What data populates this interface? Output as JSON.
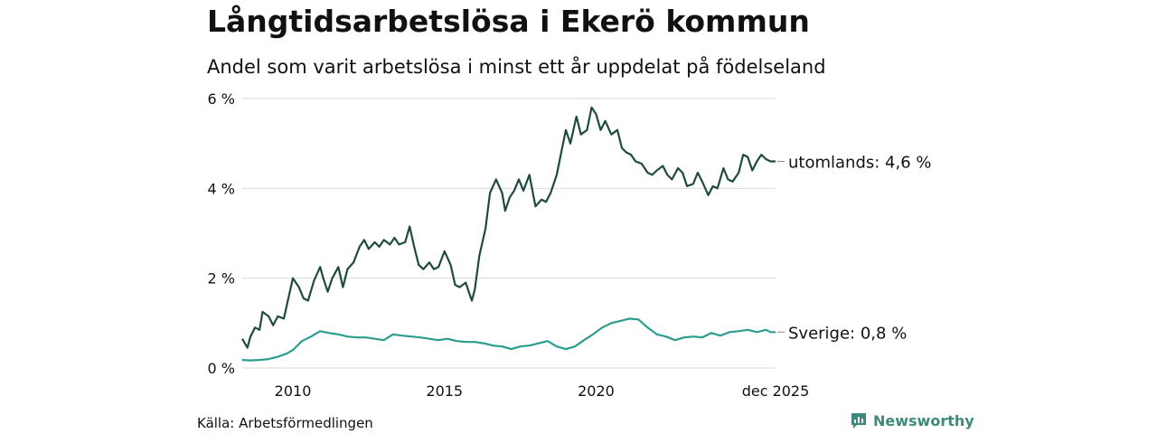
{
  "title": "Långtidsarbetslösa i Ekerö kommun",
  "subtitle": "Andel som varit arbetslösa i minst ett år uppdelat på födelseland",
  "source": "Källa: Arbetsförmedlingen",
  "brand": "Newsworthy",
  "chart_data": {
    "type": "line",
    "title": "Långtidsarbetslösa i Ekerö kommun",
    "ylim": [
      0,
      6
    ],
    "y_ticks": [
      {
        "value": 0,
        "label": "0 %"
      },
      {
        "value": 2,
        "label": "2 %"
      },
      {
        "value": 4,
        "label": "4 %"
      },
      {
        "value": 6,
        "label": "6 %"
      }
    ],
    "x_ticks": [
      {
        "value": 2010.0,
        "label": "2010"
      },
      {
        "value": 2015.0,
        "label": "2015"
      },
      {
        "value": 2020.0,
        "label": "2020"
      },
      {
        "value": 2025.917,
        "label": "dec 2025"
      }
    ],
    "xlim": [
      2008.33,
      2025.917
    ],
    "grid": true,
    "series": [
      {
        "name": "utomlands",
        "label": "utomlands: 4,6 %",
        "color": "#1f4a42",
        "x": [
          2008.33,
          2008.5,
          2008.6,
          2008.75,
          2008.9,
          2009.0,
          2009.2,
          2009.35,
          2009.5,
          2009.7,
          2009.85,
          2010.0,
          2010.2,
          2010.35,
          2010.5,
          2010.7,
          2010.9,
          2011.0,
          2011.15,
          2011.3,
          2011.5,
          2011.65,
          2011.8,
          2012.0,
          2012.2,
          2012.35,
          2012.5,
          2012.7,
          2012.85,
          2013.0,
          2013.2,
          2013.35,
          2013.5,
          2013.7,
          2013.85,
          2014.0,
          2014.15,
          2014.3,
          2014.5,
          2014.65,
          2014.8,
          2015.0,
          2015.2,
          2015.35,
          2015.5,
          2015.7,
          2015.9,
          2016.0,
          2016.15,
          2016.35,
          2016.5,
          2016.7,
          2016.9,
          2017.0,
          2017.15,
          2017.3,
          2017.45,
          2017.6,
          2017.8,
          2018.0,
          2018.2,
          2018.35,
          2018.5,
          2018.7,
          2018.85,
          2019.0,
          2019.15,
          2019.35,
          2019.5,
          2019.7,
          2019.85,
          2020.0,
          2020.15,
          2020.3,
          2020.5,
          2020.7,
          2020.85,
          2021.0,
          2021.15,
          2021.3,
          2021.5,
          2021.7,
          2021.85,
          2022.0,
          2022.2,
          2022.35,
          2022.5,
          2022.7,
          2022.85,
          2023.0,
          2023.2,
          2023.35,
          2023.5,
          2023.7,
          2023.85,
          2024.0,
          2024.2,
          2024.35,
          2024.5,
          2024.7,
          2024.85,
          2025.0,
          2025.15,
          2025.3,
          2025.45,
          2025.6,
          2025.75,
          2025.917
        ],
        "values": [
          0.65,
          0.45,
          0.7,
          0.9,
          0.85,
          1.25,
          1.15,
          0.95,
          1.15,
          1.1,
          1.55,
          2.0,
          1.8,
          1.55,
          1.5,
          1.95,
          2.25,
          2.0,
          1.7,
          2.0,
          2.25,
          1.8,
          2.2,
          2.35,
          2.7,
          2.85,
          2.65,
          2.8,
          2.7,
          2.85,
          2.75,
          2.9,
          2.75,
          2.8,
          3.15,
          2.7,
          2.3,
          2.2,
          2.35,
          2.2,
          2.25,
          2.6,
          2.3,
          1.85,
          1.8,
          1.9,
          1.5,
          1.75,
          2.5,
          3.1,
          3.9,
          4.2,
          3.9,
          3.5,
          3.8,
          3.95,
          4.2,
          3.95,
          4.3,
          3.6,
          3.75,
          3.7,
          3.9,
          4.3,
          4.8,
          5.3,
          5.0,
          5.6,
          5.2,
          5.3,
          5.8,
          5.65,
          5.3,
          5.5,
          5.2,
          5.3,
          4.9,
          4.8,
          4.75,
          4.6,
          4.55,
          4.35,
          4.3,
          4.4,
          4.5,
          4.3,
          4.2,
          4.45,
          4.35,
          4.05,
          4.1,
          4.35,
          4.15,
          3.85,
          4.05,
          4.0,
          4.45,
          4.2,
          4.15,
          4.35,
          4.75,
          4.7,
          4.4,
          4.6,
          4.75,
          4.65,
          4.6,
          4.6
        ]
      },
      {
        "name": "Sverige",
        "label": "Sverige: 0,8 %",
        "color": "#2a9d8f",
        "x": [
          2008.33,
          2008.6,
          2008.9,
          2009.2,
          2009.5,
          2009.8,
          2010.0,
          2010.3,
          2010.6,
          2010.9,
          2011.2,
          2011.5,
          2011.8,
          2012.1,
          2012.4,
          2012.7,
          2013.0,
          2013.3,
          2013.6,
          2013.9,
          2014.2,
          2014.5,
          2014.8,
          2015.1,
          2015.4,
          2015.7,
          2016.0,
          2016.3,
          2016.6,
          2016.9,
          2017.2,
          2017.5,
          2017.8,
          2018.1,
          2018.4,
          2018.7,
          2019.0,
          2019.3,
          2019.6,
          2019.9,
          2020.2,
          2020.5,
          2020.8,
          2021.1,
          2021.4,
          2021.7,
          2022.0,
          2022.3,
          2022.6,
          2022.9,
          2023.2,
          2023.5,
          2023.8,
          2024.1,
          2024.4,
          2024.7,
          2025.0,
          2025.3,
          2025.6,
          2025.75,
          2025.917
        ],
        "values": [
          0.18,
          0.17,
          0.18,
          0.2,
          0.25,
          0.32,
          0.4,
          0.6,
          0.7,
          0.82,
          0.78,
          0.75,
          0.7,
          0.68,
          0.68,
          0.65,
          0.62,
          0.75,
          0.72,
          0.7,
          0.68,
          0.65,
          0.62,
          0.65,
          0.6,
          0.58,
          0.58,
          0.55,
          0.5,
          0.48,
          0.42,
          0.48,
          0.5,
          0.55,
          0.6,
          0.48,
          0.42,
          0.48,
          0.62,
          0.75,
          0.9,
          1.0,
          1.05,
          1.1,
          1.08,
          0.9,
          0.75,
          0.7,
          0.62,
          0.68,
          0.7,
          0.68,
          0.78,
          0.72,
          0.8,
          0.82,
          0.85,
          0.8,
          0.85,
          0.8,
          0.8
        ]
      }
    ]
  }
}
